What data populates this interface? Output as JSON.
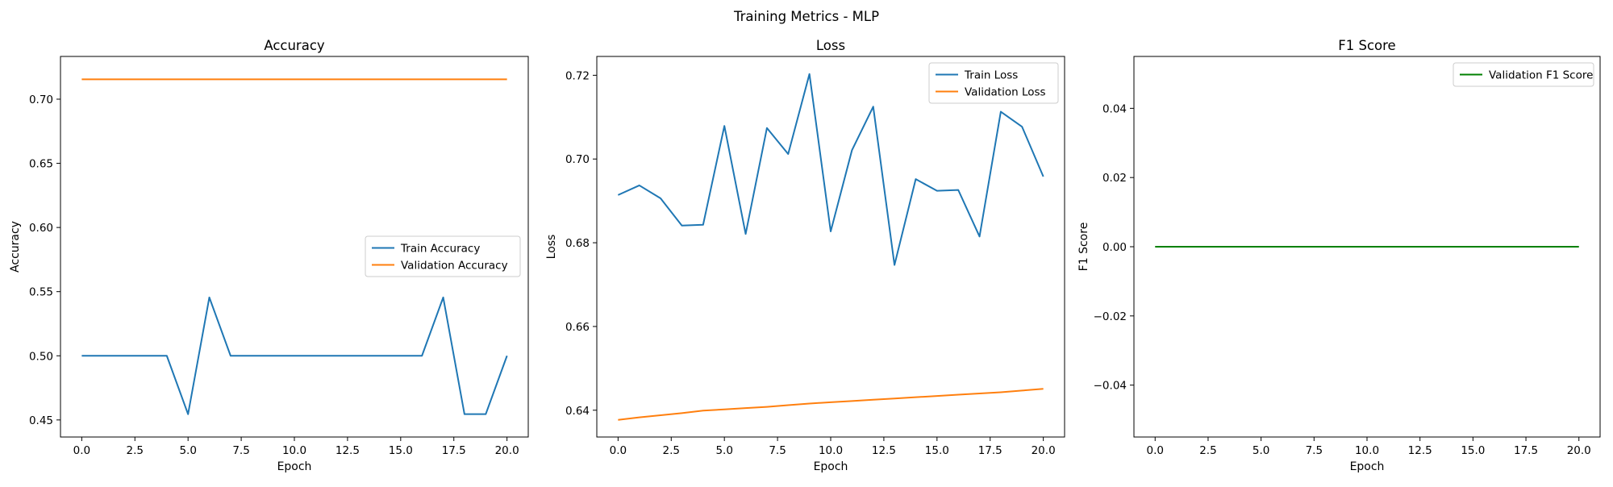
{
  "suptitle": "Training Metrics - MLP",
  "chart_data": [
    {
      "type": "line",
      "title": "Accuracy",
      "xlabel": "Epoch",
      "ylabel": "Accuracy",
      "xlim": [
        -1,
        21
      ],
      "ylim": [
        0.4367,
        0.7333
      ],
      "xticks": [
        0,
        2.5,
        5,
        7.5,
        10,
        12.5,
        15,
        17.5,
        20
      ],
      "xtick_labels": [
        "0.0",
        "2.5",
        "5.0",
        "7.5",
        "10.0",
        "12.5",
        "15.0",
        "17.5",
        "20.0"
      ],
      "yticks": [
        0.45,
        0.5,
        0.55,
        0.6,
        0.65,
        0.7
      ],
      "ytick_labels": [
        "0.45",
        "0.50",
        "0.55",
        "0.60",
        "0.65",
        "0.70"
      ],
      "legend_position": "center-right",
      "grid": false,
      "x": [
        0,
        1,
        2,
        3,
        4,
        5,
        6,
        7,
        8,
        9,
        10,
        11,
        12,
        13,
        14,
        15,
        16,
        17,
        18,
        19,
        20
      ],
      "series": [
        {
          "name": "Train Accuracy",
          "color": "#1f77b4",
          "values": [
            0.5,
            0.5,
            0.5,
            0.5,
            0.5,
            0.4545,
            0.5455,
            0.5,
            0.5,
            0.5,
            0.5,
            0.5,
            0.5,
            0.5,
            0.5,
            0.5,
            0.5,
            0.5455,
            0.4545,
            0.4545,
            0.5
          ]
        },
        {
          "name": "Validation Accuracy",
          "color": "#ff7f0e",
          "values": [
            0.7155,
            0.7155,
            0.7155,
            0.7155,
            0.7155,
            0.7155,
            0.7155,
            0.7155,
            0.7155,
            0.7155,
            0.7155,
            0.7155,
            0.7155,
            0.7155,
            0.7155,
            0.7155,
            0.7155,
            0.7155,
            0.7155,
            0.7155,
            0.7155
          ]
        }
      ]
    },
    {
      "type": "line",
      "title": "Loss",
      "xlabel": "Epoch",
      "ylabel": "Loss",
      "xlim": [
        -1,
        21
      ],
      "ylim": [
        0.6336,
        0.7245
      ],
      "xticks": [
        0,
        2.5,
        5,
        7.5,
        10,
        12.5,
        15,
        17.5,
        20
      ],
      "xtick_labels": [
        "0.0",
        "2.5",
        "5.0",
        "7.5",
        "10.0",
        "12.5",
        "15.0",
        "17.5",
        "20.0"
      ],
      "yticks": [
        0.64,
        0.66,
        0.68,
        0.7,
        0.72
      ],
      "ytick_labels": [
        "0.64",
        "0.66",
        "0.68",
        "0.70",
        "0.72"
      ],
      "legend_position": "upper-right",
      "grid": false,
      "x": [
        0,
        1,
        2,
        3,
        4,
        5,
        6,
        7,
        8,
        9,
        10,
        11,
        12,
        13,
        14,
        15,
        16,
        17,
        18,
        19,
        20
      ],
      "series": [
        {
          "name": "Train Loss",
          "color": "#1f77b4",
          "values": [
            0.6914,
            0.6937,
            0.6906,
            0.6841,
            0.6843,
            0.7079,
            0.6821,
            0.7074,
            0.7012,
            0.7203,
            0.6827,
            0.7021,
            0.7125,
            0.6747,
            0.6952,
            0.6924,
            0.6926,
            0.6815,
            0.7113,
            0.7077,
            0.6958
          ]
        },
        {
          "name": "Validation Loss",
          "color": "#ff7f0e",
          "values": [
            0.6377,
            0.6383,
            0.6388,
            0.6393,
            0.6399,
            0.6402,
            0.6405,
            0.6408,
            0.6412,
            0.6416,
            0.6419,
            0.6422,
            0.6425,
            0.6428,
            0.6431,
            0.6434,
            0.6437,
            0.644,
            0.6443,
            0.6447,
            0.6451
          ]
        }
      ]
    },
    {
      "type": "line",
      "title": "F1 Score",
      "xlabel": "Epoch",
      "ylabel": "F1 Score",
      "xlim": [
        -1,
        21
      ],
      "ylim": [
        -0.055,
        0.055
      ],
      "xticks": [
        0,
        2.5,
        5,
        7.5,
        10,
        12.5,
        15,
        17.5,
        20
      ],
      "xtick_labels": [
        "0.0",
        "2.5",
        "5.0",
        "7.5",
        "10.0",
        "12.5",
        "15.0",
        "17.5",
        "20.0"
      ],
      "yticks": [
        -0.04,
        -0.02,
        0,
        0.02,
        0.04
      ],
      "ytick_labels": [
        "−0.04",
        "−0.02",
        "0.00",
        "0.02",
        "0.04"
      ],
      "legend_position": "upper-right",
      "grid": false,
      "x": [
        0,
        1,
        2,
        3,
        4,
        5,
        6,
        7,
        8,
        9,
        10,
        11,
        12,
        13,
        14,
        15,
        16,
        17,
        18,
        19,
        20
      ],
      "series": [
        {
          "name": "Validation F1 Score",
          "color": "#008000",
          "values": [
            0,
            0,
            0,
            0,
            0,
            0,
            0,
            0,
            0,
            0,
            0,
            0,
            0,
            0,
            0,
            0,
            0,
            0,
            0,
            0,
            0
          ]
        }
      ]
    }
  ]
}
